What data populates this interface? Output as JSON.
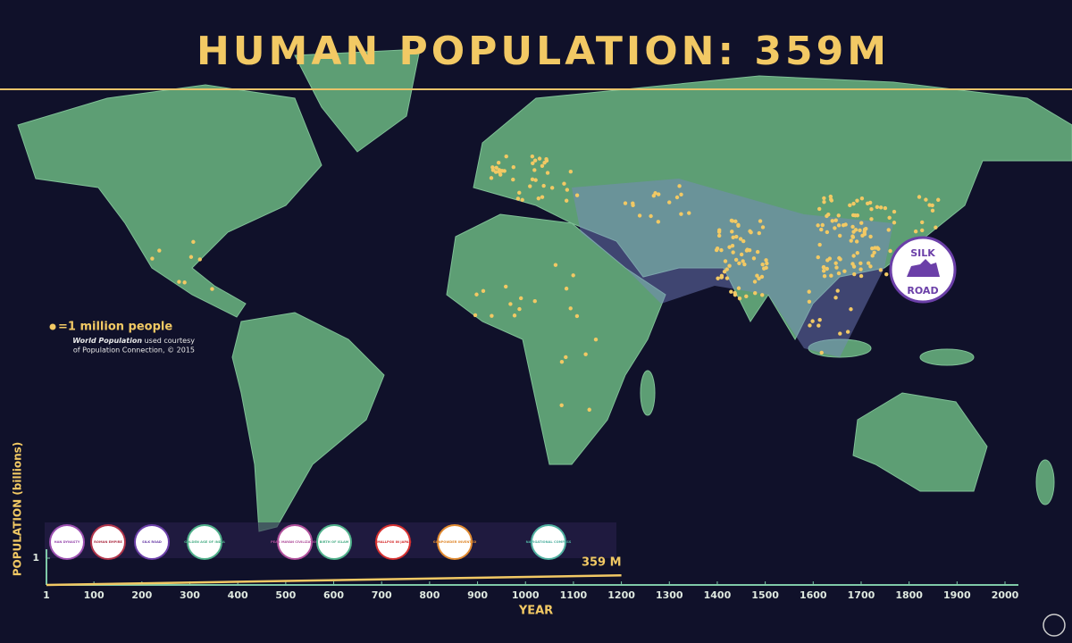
{
  "header": {
    "title": "HUMAN POPULATION: 359M"
  },
  "legend": {
    "label": "=1 million people",
    "credit_italic": "World Population",
    "credit_rest": "used courtesy",
    "credit_line2": "of Population Connection, © 2015"
  },
  "map_badge": {
    "lines": [
      "SILK",
      "ROAD"
    ]
  },
  "timeline": {
    "xlabel": "YEAR",
    "ylabel": "POPULATION (billions)",
    "xlim": [
      1,
      2000
    ],
    "xticks": [
      1,
      100,
      200,
      300,
      400,
      500,
      600,
      700,
      800,
      900,
      1000,
      1100,
      1200,
      1300,
      1400,
      1500,
      1600,
      1700,
      1800,
      1900,
      2000
    ],
    "ylim": [
      0,
      1
    ],
    "yticks": [
      1
    ],
    "current": {
      "year": 1200,
      "value": 0.359,
      "label": "359 M"
    },
    "events": [
      "HAN DYNASTY",
      "ROMAN EMPIRE",
      "SILK ROAD",
      "GOLDEN AGE OF INDIA",
      "PEAK MAYAN CIVILIZATION",
      "BIRTH OF ISLAM",
      "SMALLPOX IN JAPAN",
      "GUNPOWDER INVENTED",
      "NAVIGATIONAL COMPASS"
    ]
  }
}
